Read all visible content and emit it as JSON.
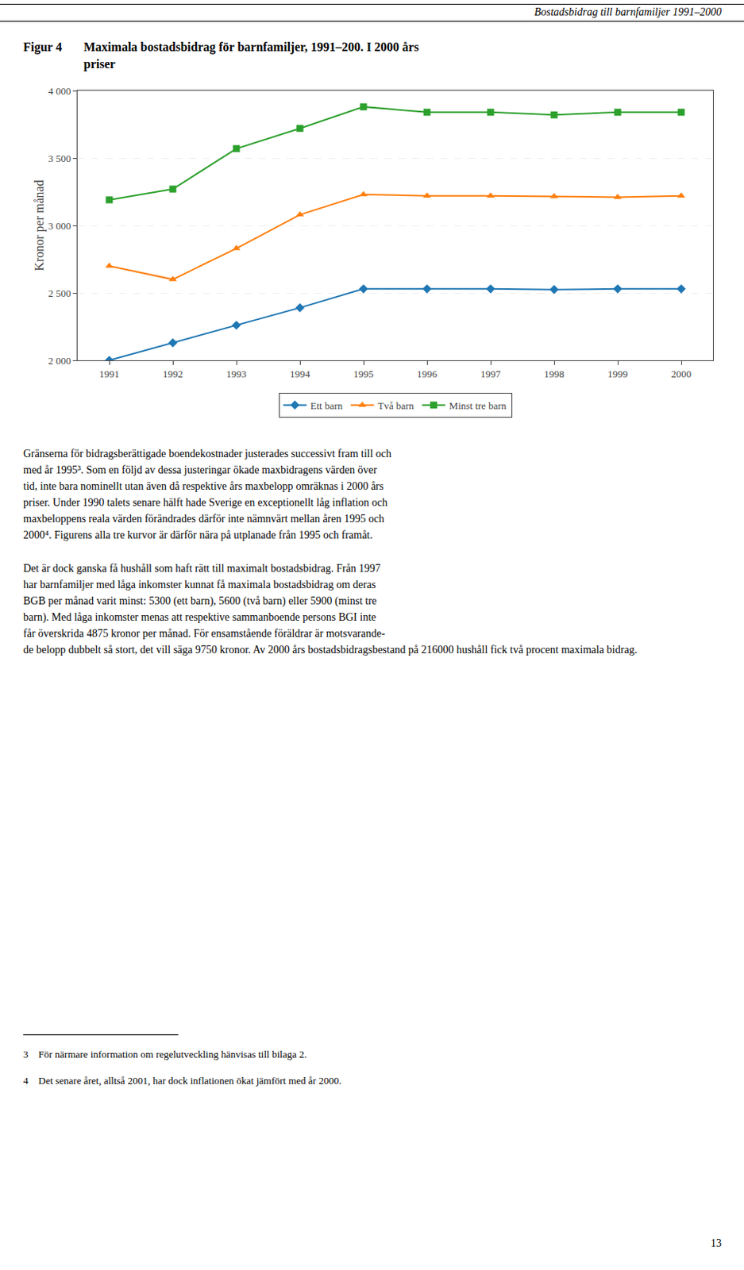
{
  "chart_data": {
    "type": "line",
    "header": "Bostadsbidrag till barnfamiljer 1991–2000",
    "figure_label": "Figur 4",
    "title": "Maximala bostadsbidrag för barnfamiljer, 1991–200. I 2000 års\npriser",
    "ylabel": "Kronor per månad",
    "x": [
      1991,
      1992,
      1993,
      1994,
      1995,
      1996,
      1997,
      1998,
      1999,
      2000
    ],
    "series": [
      {
        "name": "Ett barn",
        "marker": "diamond",
        "values": [
          2000,
          2130,
          2260,
          2390,
          2530,
          2530,
          2530,
          2525,
          2530,
          2530
        ]
      },
      {
        "name": "Två barn",
        "marker": "triangle-up",
        "values": [
          2700,
          2600,
          2830,
          3080,
          3230,
          3220,
          3220,
          3215,
          3210,
          3220
        ]
      },
      {
        "name": "Minst tre barn",
        "marker": "square",
        "values": [
          3190,
          3270,
          3570,
          3720,
          3880,
          3840,
          3840,
          3820,
          3840,
          3840
        ]
      }
    ],
    "xlim": [
      1990.5,
      2000.5
    ],
    "xticks": [
      1991,
      1992,
      1993,
      1994,
      1995,
      1996,
      1997,
      1998,
      1999,
      2000
    ],
    "ylim": [
      2000,
      4000
    ],
    "yticks": [
      {
        "value": 2000,
        "label": "2 000"
      },
      {
        "value": 2500,
        "label": "2 500"
      },
      {
        "value": 3000,
        "label": "3 000"
      },
      {
        "value": 3500,
        "label": "3 500"
      },
      {
        "value": 4000,
        "label": "4 000"
      }
    ],
    "grid": "y",
    "legend": "bottom",
    "paragraphs": [
      [
        "Gränserna för bidragsberättigade boendekostnader justerades successivt fram till och",
        "med år 1995³. Som en följd av dessa justeringar ökade maxbidragens värden över",
        "tid, inte bara nominellt utan även då respektive års maxbelopp omräknas i 2000 års",
        "priser. Under 1990 talets senare hälft hade Sverige en exceptionellt låg inflation och",
        "maxbeloppens reala värden förändrades därför inte nämnvärt mellan åren 1995 och",
        "2000⁴. Figurens alla tre kurvor är därför nära på utplanade från 1995 och framåt."
      ],
      [
        "Det är dock ganska få hushåll som haft rätt till maximalt bostadsbidrag. Från 1997",
        "har barnfamiljer med låga inkomster kunnat få maximala bostadsbidrag om deras",
        "BGB per månad varit minst: 5300 (ett barn), 5600 (två barn) eller 5900 (minst tre",
        "barn). Med låga inkomster menas att respektive sammanboende persons BGI inte",
        "får överskrida 4875 kronor per månad. För ensamstående föräldrar är motsvarande-",
        "de belopp dubbelt så stort, det vill säga 9750 kronor. Av 2000 års bostadsbidragsbestand på 216000 hushåll fick två procent maximala bidrag."
      ]
    ],
    "footnotes": [
      "3    För närmare information om regelutveckling hänvisas till bilaga 2.",
      "4    Det senare året, alltså 2001, har dock inflationen ökat jämfört med år 2000."
    ],
    "page_number": "13"
  }
}
